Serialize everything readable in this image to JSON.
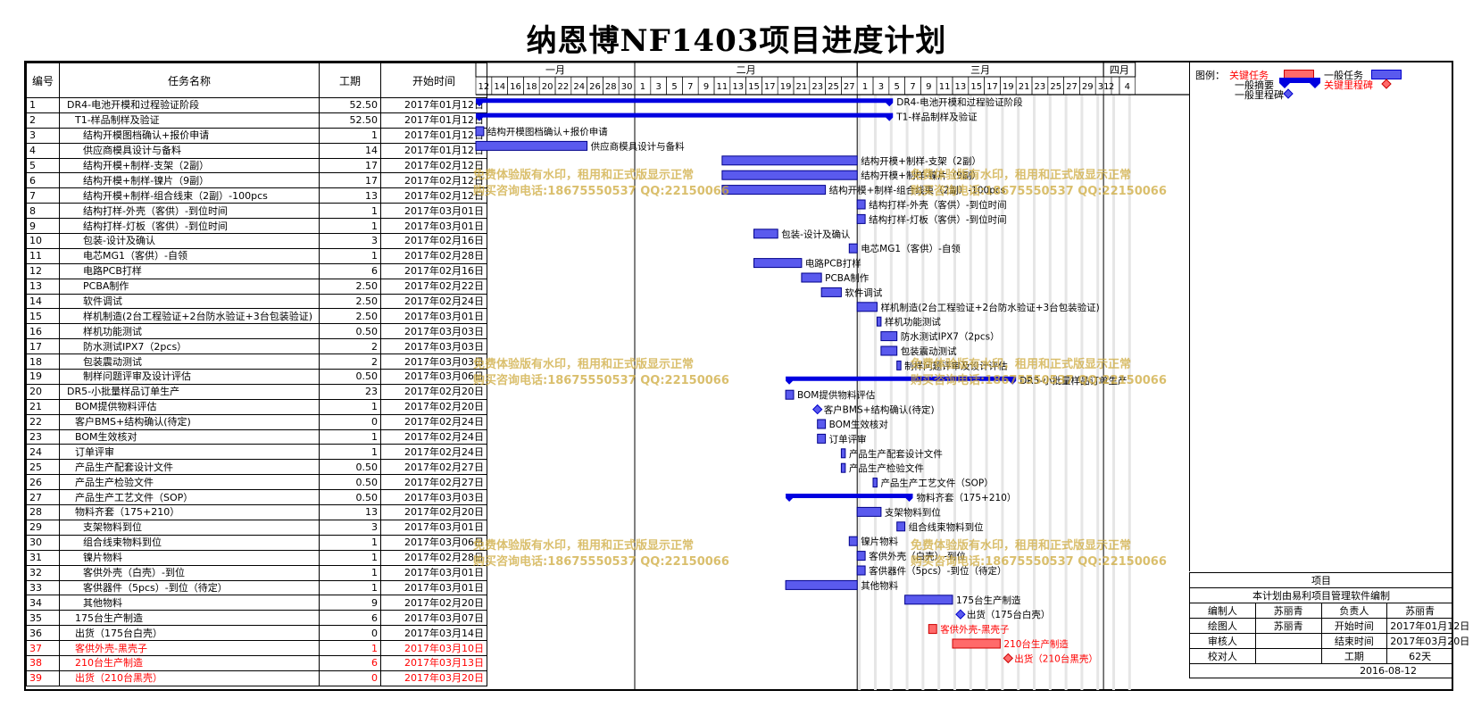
{
  "title": "纳恩博NF1403项目进度计划",
  "columns": {
    "id": "编号",
    "name": "任务名称",
    "duration": "工期",
    "start": "开始时间"
  },
  "months": [
    "一月",
    "二月",
    "三月",
    "四月"
  ],
  "day_labels": [
    "12",
    "14",
    "16",
    "18",
    "20",
    "22",
    "24",
    "26",
    "28",
    "30",
    "1",
    "3",
    "5",
    "7",
    "9",
    "11",
    "13",
    "15",
    "17",
    "19",
    "21",
    "23",
    "25",
    "27",
    "1",
    "3",
    "5",
    "7",
    "9",
    "11",
    "13",
    "15",
    "17",
    "19",
    "21",
    "23",
    "25",
    "27",
    "29",
    "31",
    "2",
    "4"
  ],
  "tasks": [
    {
      "id": "1",
      "name": "DR4-电池开模和过程验证阶段",
      "duration": "52.50",
      "start": "2017年01月12日",
      "label": "DR4-电池开模和过程验证阶段",
      "type": "summary",
      "s": 0,
      "d": 52.5,
      "indent": 0,
      "critical": false
    },
    {
      "id": "2",
      "name": "T1-样品制样及验证",
      "duration": "52.50",
      "start": "2017年01月12日",
      "label": "T1-样品制样及验证",
      "type": "summary",
      "s": 0,
      "d": 52.5,
      "indent": 1,
      "critical": false
    },
    {
      "id": "3",
      "name": "结构开模图档确认+报价申请",
      "duration": "1",
      "start": "2017年01月12日",
      "label": "结构开模图档确认+报价申请",
      "type": "task",
      "s": 0,
      "d": 1,
      "indent": 2,
      "critical": false
    },
    {
      "id": "4",
      "name": "供应商模具设计与备料",
      "duration": "14",
      "start": "2017年01月12日",
      "label": "供应商模具设计与备料",
      "type": "task",
      "s": 0,
      "d": 14,
      "indent": 2,
      "critical": false
    },
    {
      "id": "5",
      "name": "结构开模+制样-支架（2副）",
      "duration": "17",
      "start": "2017年02月12日",
      "label": "结构开模+制样-支架（2副）",
      "type": "task",
      "s": 31,
      "d": 17,
      "indent": 2,
      "critical": false
    },
    {
      "id": "6",
      "name": "结构开模+制样-镍片（9副）",
      "duration": "17",
      "start": "2017年02月12日",
      "label": "结构开模+制样-镍片（9副）",
      "type": "task",
      "s": 31,
      "d": 17,
      "indent": 2,
      "critical": false
    },
    {
      "id": "7",
      "name": "结构开模+制样-组合线束（2副）-100pcs",
      "duration": "13",
      "start": "2017年02月12日",
      "label": "结构开模+制样-组合线束（2副）-100pcs",
      "type": "task",
      "s": 31,
      "d": 13,
      "indent": 2,
      "critical": false
    },
    {
      "id": "8",
      "name": "结构打样-外壳（客供）-到位时间",
      "duration": "1",
      "start": "2017年03月01日",
      "label": "结构打样-外壳（客供）-到位时间",
      "type": "task",
      "s": 48,
      "d": 1,
      "indent": 2,
      "critical": false
    },
    {
      "id": "9",
      "name": "结构打样-灯板（客供）-到位时间",
      "duration": "1",
      "start": "2017年03月01日",
      "label": "结构打样-灯板（客供）-到位时间",
      "type": "task",
      "s": 48,
      "d": 1,
      "indent": 2,
      "critical": false
    },
    {
      "id": "10",
      "name": "包装-设计及确认",
      "duration": "3",
      "start": "2017年02月16日",
      "label": "包装-设计及确认",
      "type": "task",
      "s": 35,
      "d": 3,
      "indent": 2,
      "critical": false
    },
    {
      "id": "11",
      "name": "电芯MG1（客供）-自领",
      "duration": "1",
      "start": "2017年02月28日",
      "label": "电芯MG1（客供）-自领",
      "type": "task",
      "s": 47,
      "d": 1,
      "indent": 2,
      "critical": false
    },
    {
      "id": "12",
      "name": "电路PCB打样",
      "duration": "6",
      "start": "2017年02月16日",
      "label": "电路PCB打样",
      "type": "task",
      "s": 35,
      "d": 6,
      "indent": 2,
      "critical": false
    },
    {
      "id": "13",
      "name": "PCBA制作",
      "duration": "2.50",
      "start": "2017年02月22日",
      "label": "PCBA制作",
      "type": "task",
      "s": 41,
      "d": 2.5,
      "indent": 2,
      "critical": false
    },
    {
      "id": "14",
      "name": "软件调试",
      "duration": "2.50",
      "start": "2017年02月24日",
      "label": "软件调试",
      "type": "task",
      "s": 43.5,
      "d": 2.5,
      "indent": 2,
      "critical": false
    },
    {
      "id": "15",
      "name": "样机制造(2台工程验证+2台防水验证+3台包装验证)",
      "duration": "2.50",
      "start": "2017年03月01日",
      "label": "样机制造(2台工程验证+2台防水验证+3台包装验证)",
      "type": "task",
      "s": 48,
      "d": 2.5,
      "indent": 2,
      "critical": false
    },
    {
      "id": "16",
      "name": "样机功能测试",
      "duration": "0.50",
      "start": "2017年03月03日",
      "label": "样机功能测试",
      "type": "task",
      "s": 50.5,
      "d": 0.5,
      "indent": 2,
      "critical": false
    },
    {
      "id": "17",
      "name": "防水测试IPX7（2pcs）",
      "duration": "2",
      "start": "2017年03月03日",
      "label": "防水测试IPX7（2pcs）",
      "type": "task",
      "s": 51,
      "d": 2,
      "indent": 2,
      "critical": false
    },
    {
      "id": "18",
      "name": "包装震动测试",
      "duration": "2",
      "start": "2017年03月03日",
      "label": "包装震动测试",
      "type": "task",
      "s": 51,
      "d": 2,
      "indent": 2,
      "critical": false
    },
    {
      "id": "19",
      "name": "制样问题评审及设计评估",
      "duration": "0.50",
      "start": "2017年03月06日",
      "label": "制样问题评审及设计评估",
      "type": "task",
      "s": 53,
      "d": 0.5,
      "indent": 2,
      "critical": false
    },
    {
      "id": "20",
      "name": "DR5-小批量样品订单生产",
      "duration": "23",
      "start": "2017年02月20日",
      "label": "DR5-小批量样品订单生产",
      "type": "summary",
      "s": 39,
      "d": 29,
      "indent": 0,
      "critical": false
    },
    {
      "id": "21",
      "name": "BOM提供物料评估",
      "duration": "1",
      "start": "2017年02月20日",
      "label": "BOM提供物料评估",
      "type": "task",
      "s": 39,
      "d": 1,
      "indent": 1,
      "critical": false
    },
    {
      "id": "22",
      "name": "客户BMS+结构确认(待定)",
      "duration": "0",
      "start": "2017年02月24日",
      "label": "客户BMS+结构确认(待定)",
      "type": "milestone",
      "s": 43,
      "d": 0,
      "indent": 1,
      "critical": false
    },
    {
      "id": "23",
      "name": "BOM生效核对",
      "duration": "1",
      "start": "2017年02月24日",
      "label": "BOM生效核对",
      "type": "task",
      "s": 43,
      "d": 1,
      "indent": 1,
      "critical": false
    },
    {
      "id": "24",
      "name": "订单评审",
      "duration": "1",
      "start": "2017年02月24日",
      "label": "订单评审",
      "type": "task",
      "s": 43,
      "d": 1,
      "indent": 1,
      "critical": false
    },
    {
      "id": "25",
      "name": "产品生产配套设计文件",
      "duration": "0.50",
      "start": "2017年02月27日",
      "label": "产品生产配套设计文件",
      "type": "task",
      "s": 46,
      "d": 0.5,
      "indent": 1,
      "critical": false
    },
    {
      "id": "26",
      "name": "产品生产检验文件",
      "duration": "0.50",
      "start": "2017年02月27日",
      "label": "产品生产检验文件",
      "type": "task",
      "s": 46,
      "d": 0.5,
      "indent": 1,
      "critical": false
    },
    {
      "id": "27",
      "name": "产品生产工艺文件（SOP）",
      "duration": "0.50",
      "start": "2017年03月03日",
      "label": "产品生产工艺文件（SOP）",
      "type": "task",
      "s": 50,
      "d": 0.5,
      "indent": 1,
      "critical": false
    },
    {
      "id": "28",
      "name": "物料齐套（175+210）",
      "duration": "13",
      "start": "2017年02月20日",
      "label": "物料齐套（175+210）",
      "type": "summary",
      "s": 39,
      "d": 16,
      "indent": 1,
      "critical": false
    },
    {
      "id": "29",
      "name": "支架物料到位",
      "duration": "3",
      "start": "2017年03月01日",
      "label": "支架物料到位",
      "type": "task",
      "s": 48,
      "d": 3,
      "indent": 2,
      "critical": false
    },
    {
      "id": "30",
      "name": "组合线束物料到位",
      "duration": "1",
      "start": "2017年03月06日",
      "label": "组合线束物料到位",
      "type": "task",
      "s": 53,
      "d": 1,
      "indent": 2,
      "critical": false
    },
    {
      "id": "31",
      "name": "镍片物料",
      "duration": "1",
      "start": "2017年02月28日",
      "label": "镍片物料",
      "type": "task",
      "s": 47,
      "d": 1,
      "indent": 2,
      "critical": false
    },
    {
      "id": "32",
      "name": "客供外壳（白壳）-到位",
      "duration": "1",
      "start": "2017年03月01日",
      "label": "客供外壳（白壳）-到位",
      "type": "task",
      "s": 48,
      "d": 1,
      "indent": 2,
      "critical": false
    },
    {
      "id": "33",
      "name": "客供器件（5pcs）-到位（待定）",
      "duration": "1",
      "start": "2017年03月01日",
      "label": "客供器件（5pcs）-到位（待定）",
      "type": "task",
      "s": 48,
      "d": 1,
      "indent": 2,
      "critical": false
    },
    {
      "id": "34",
      "name": "其他物料",
      "duration": "9",
      "start": "2017年02月20日",
      "label": "其他物料",
      "type": "task",
      "s": 39,
      "d": 9,
      "indent": 2,
      "critical": false
    },
    {
      "id": "35",
      "name": "175台生产制造",
      "duration": "6",
      "start": "2017年03月07日",
      "label": "175台生产制造",
      "type": "task",
      "s": 54,
      "d": 6,
      "indent": 1,
      "critical": false
    },
    {
      "id": "36",
      "name": "出货（175台白壳）",
      "duration": "0",
      "start": "2017年03月14日",
      "label": "出货（175台白壳）",
      "type": "milestone",
      "s": 61,
      "d": 0,
      "indent": 1,
      "critical": false
    },
    {
      "id": "37",
      "name": "客供外壳-黑壳子",
      "duration": "1",
      "start": "2017年03月10日",
      "label": "客供外壳-黑壳子",
      "type": "task",
      "s": 57,
      "d": 1,
      "indent": 1,
      "critical": true
    },
    {
      "id": "38",
      "name": "210台生产制造",
      "duration": "6",
      "start": "2017年03月13日",
      "label": "210台生产制造",
      "type": "task",
      "s": 60,
      "d": 6,
      "indent": 1,
      "critical": true
    },
    {
      "id": "39",
      "name": "出货（210台黑壳）",
      "duration": "0",
      "start": "2017年03月20日",
      "label": "出货（210台黑壳）",
      "type": "milestone",
      "s": 67,
      "d": 0,
      "indent": 1,
      "critical": true
    }
  ],
  "legend": {
    "label": "图例：",
    "critical_task": "关键任务",
    "normal_task": "一般任务",
    "summary": "一般摘要",
    "critical_milestone": "关键里程碑",
    "normal_milestone": "一般里程碑"
  },
  "info": {
    "project_label": "项目",
    "note": "本计划由易利项目管理软件编制",
    "editor_label": "编制人",
    "editor": "苏丽青",
    "owner_label": "负责人",
    "owner": "苏丽青",
    "drawer_label": "绘图人",
    "drawer": "苏丽青",
    "start_label": "开始时间",
    "start": "2017年01月12日",
    "reviewer_label": "审核人",
    "end_label": "结束时间",
    "end": "2017年03月20日",
    "checker_label": "校对人",
    "duration_label": "工期",
    "duration": "62天",
    "date": "2016-08-12"
  },
  "watermark": {
    "line1": "免费体验版有水印，租用和正式版显示正常",
    "line2": "购买咨询电话:18675550537 QQ:22150066"
  },
  "colors": {
    "task": "#3a3ad8",
    "summary": "#0000e0",
    "critical": "#ff3a3a",
    "link": "#0000ff"
  }
}
